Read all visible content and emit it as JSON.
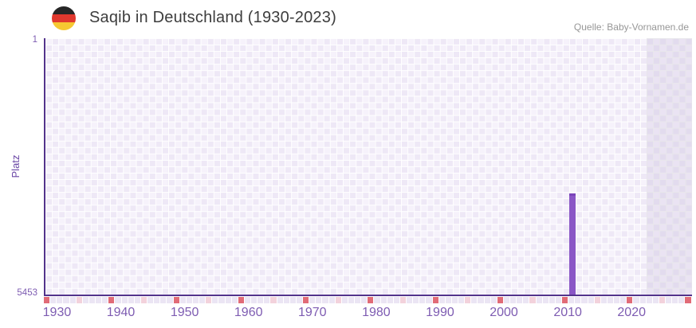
{
  "header": {
    "title": "Saqib in Deutschland (1930-2023)",
    "source": "Quelle: Baby-Vornamen.de",
    "flag_icon": "german-flag"
  },
  "chart_data": {
    "type": "bar",
    "title": "Saqib in Deutschland (1930-2023)",
    "source": "Quelle: Baby-Vornamen.de",
    "xlabel": "",
    "ylabel": "Platz",
    "y_axis": {
      "min": 1,
      "max": 5453,
      "inverted": true,
      "tick_labels": [
        "1",
        "5453"
      ]
    },
    "x_axis": {
      "start_year": 1930,
      "end_year": 2029,
      "data_last_year": 2023,
      "tick_labels": [
        "1930",
        "1940",
        "1950",
        "1960",
        "1970",
        "1980",
        "1990",
        "2000",
        "2010",
        "2020"
      ]
    },
    "series": [
      {
        "name": "Saqib",
        "points": [
          {
            "year": 2011,
            "rank": 3300
          }
        ]
      }
    ],
    "no_data_zone": {
      "from_year": 2023,
      "to_year": 2029
    },
    "axis_strip": {
      "major_years": [
        1930,
        1940,
        1950,
        1960,
        1970,
        1980,
        1990,
        2000,
        2010,
        2020,
        2029
      ],
      "minor_years": [
        1935,
        1945,
        1955,
        1965,
        1975,
        1985,
        1995,
        2005,
        2015,
        2025
      ]
    },
    "grid": true,
    "legend": false,
    "colors": {
      "bar": "#8a56c6",
      "bar_cap": "#7b44ba",
      "major_mark": "#e16b77",
      "minor_mark": "#f3d2dc",
      "strip_empty": "#ebe5f4",
      "axis": "#53338c",
      "tick_text": "#7e5cb2",
      "axis_label": "#6a46a5",
      "title_text": "#3d3d3d",
      "source_text": "#979797",
      "grid_light": "#f6f2fb",
      "grid_dark": "#eee8f6",
      "zone_light": "#eae3f3",
      "zone_dark": "#e2dbee",
      "zone_line": "#e9e7ec",
      "flag_black": "#262626",
      "flag_red": "#e0382e",
      "flag_gold": "#f6c832"
    }
  }
}
